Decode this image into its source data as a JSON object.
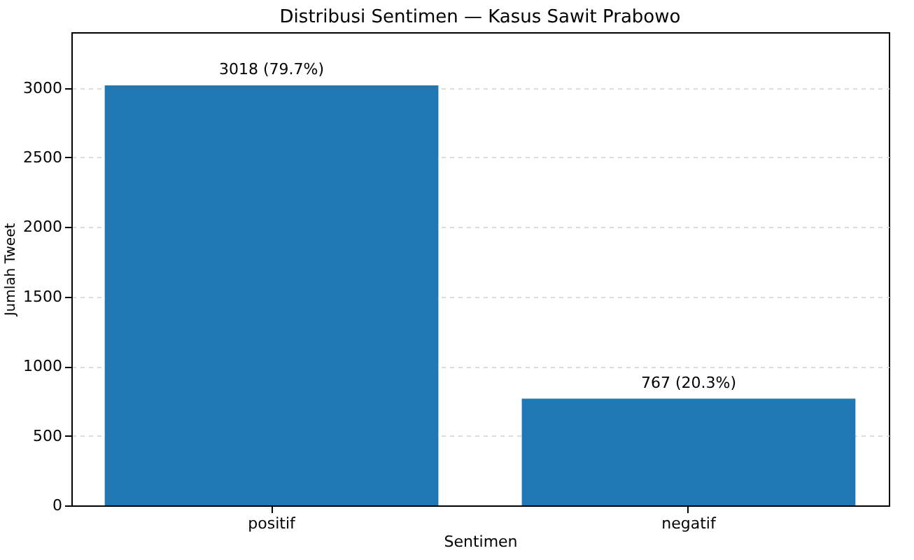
{
  "chart_data": {
    "type": "bar",
    "title": "Distribusi Sentimen — Kasus Sawit Prabowo",
    "xlabel": "Sentimen",
    "ylabel": "Jumlah Tweet",
    "categories": [
      "positif",
      "negatif"
    ],
    "values": [
      3018,
      767
    ],
    "value_labels": [
      "3018 (79.7%)",
      "767 (20.3%)"
    ],
    "color": "#1f77b4",
    "ylim": [
      0,
      3400
    ],
    "yticks": [
      0,
      500,
      1000,
      1500,
      2000,
      2500,
      3000
    ],
    "grid": "y"
  }
}
